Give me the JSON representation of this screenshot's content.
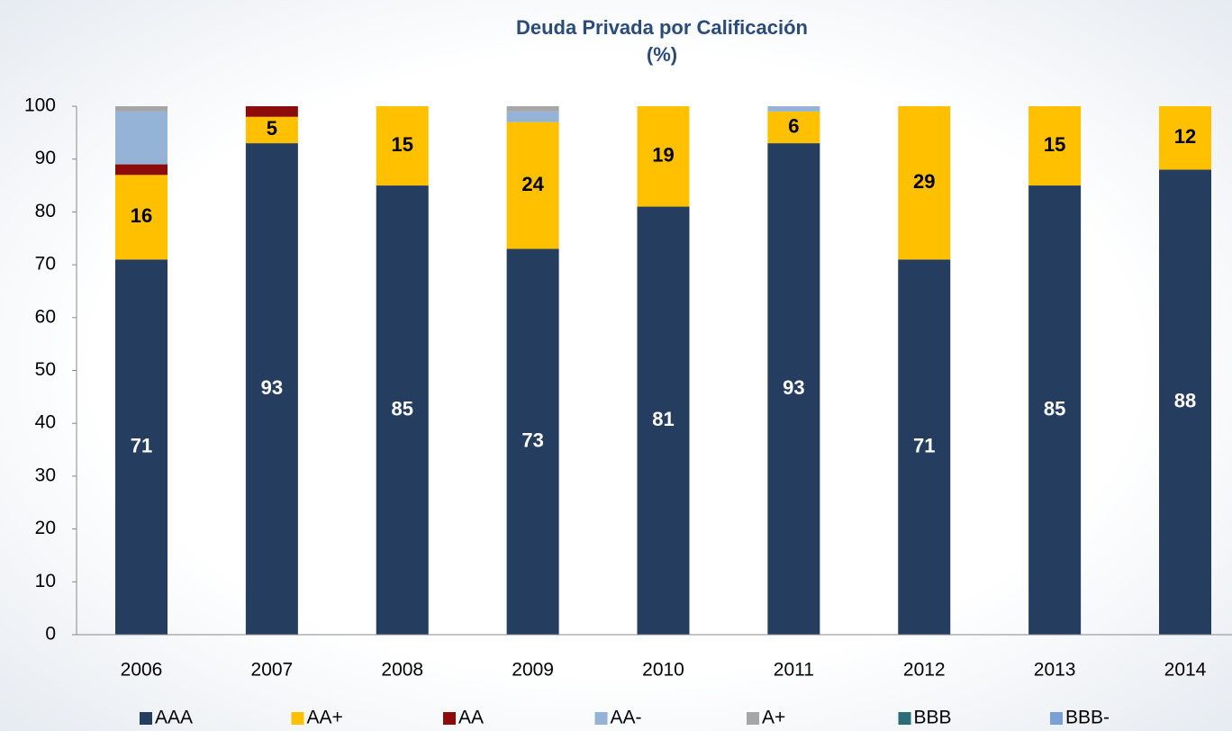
{
  "chart_data": {
    "type": "stacked_bar",
    "title": "Deuda Privada por Calificación",
    "subtitle": "(%)",
    "categories": [
      "2006",
      "2007",
      "2008",
      "2009",
      "2010",
      "2011",
      "2012",
      "2013",
      "2014"
    ],
    "series": [
      {
        "name": "AAA",
        "color": "#253e5f",
        "label_color": "#ffffff",
        "show_labels": true,
        "values": [
          71,
          93,
          85,
          73,
          81,
          93,
          71,
          85,
          88
        ]
      },
      {
        "name": "AA+",
        "color": "#ffc000",
        "label_color": "#000000",
        "show_labels": true,
        "values": [
          16,
          5,
          15,
          24,
          19,
          6,
          29,
          15,
          12
        ]
      },
      {
        "name": "AA",
        "color": "#8e0b0b",
        "values": [
          2,
          2,
          0,
          0,
          0,
          0,
          0,
          0,
          0
        ]
      },
      {
        "name": "AA-",
        "color": "#95b3d7",
        "values": [
          10,
          0,
          0,
          2,
          0,
          1,
          0,
          0,
          0
        ]
      },
      {
        "name": "A+",
        "color": "#a6a6a6",
        "values": [
          1,
          0,
          0,
          1,
          0,
          0,
          0,
          0,
          0
        ]
      },
      {
        "name": "BBB",
        "color": "#2b6e7a",
        "values": [
          0,
          0,
          0,
          0,
          0,
          0,
          0,
          0,
          0
        ]
      },
      {
        "name": "BBB-",
        "color": "#7aa0d6",
        "values": [
          0,
          0,
          0,
          0,
          0,
          0,
          0,
          0,
          0
        ]
      }
    ],
    "ylim": [
      0,
      100
    ],
    "yticks": [
      0,
      10,
      20,
      30,
      40,
      50,
      60,
      70,
      80,
      90,
      100
    ],
    "grid": false,
    "legend": "bottom"
  }
}
